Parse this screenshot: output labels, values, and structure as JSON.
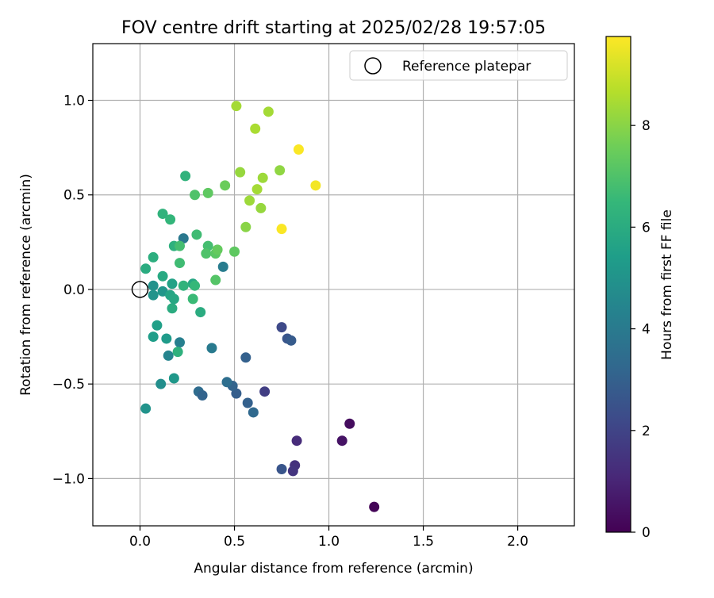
{
  "chart_data": {
    "type": "scatter",
    "title": "FOV centre drift starting at 2025/02/28 19:57:05",
    "xlabel": "Angular distance from reference (arcmin)",
    "ylabel": "Rotation from reference (arcmin)",
    "xlim": [
      -0.25,
      2.3
    ],
    "ylim": [
      -1.25,
      1.3
    ],
    "xticks": [
      0.0,
      0.5,
      1.0,
      1.5,
      2.0
    ],
    "xtick_labels": [
      "0.0",
      "0.5",
      "1.0",
      "1.5",
      "2.0"
    ],
    "yticks": [
      -1.0,
      -0.5,
      0.0,
      0.5,
      1.0
    ],
    "ytick_labels": [
      "−1.0",
      "−0.5",
      "0.0",
      "0.5",
      "1.0"
    ],
    "grid": true,
    "legend": {
      "label": "Reference platepar",
      "position": "top-right"
    },
    "reference_point": {
      "x": 0.0,
      "y": 0.0
    },
    "colorbar": {
      "label": "Hours from first FF file",
      "colormap": "viridis",
      "range": [
        0,
        9.75
      ],
      "ticks": [
        0,
        2,
        4,
        6,
        8
      ],
      "tick_labels": [
        "0",
        "2",
        "4",
        "6",
        "8"
      ]
    },
    "colormap_stops": [
      "#440154",
      "#482878",
      "#3e4989",
      "#31688e",
      "#26828e",
      "#1f9e89",
      "#35b779",
      "#6ece58",
      "#b5de2b",
      "#fde725"
    ],
    "points": [
      {
        "x": 1.24,
        "y": -1.15,
        "t": 0.1
      },
      {
        "x": 1.11,
        "y": -0.71,
        "t": 0.3
      },
      {
        "x": 1.07,
        "y": -0.8,
        "t": 0.5
      },
      {
        "x": 0.83,
        "y": -0.8,
        "t": 1.2
      },
      {
        "x": 0.82,
        "y": -0.93,
        "t": 1.4
      },
      {
        "x": 0.81,
        "y": -0.96,
        "t": 1.5
      },
      {
        "x": 0.66,
        "y": -0.54,
        "t": 1.8
      },
      {
        "x": 0.75,
        "y": -0.95,
        "t": 2.6
      },
      {
        "x": 0.75,
        "y": -0.2,
        "t": 2.2
      },
      {
        "x": 0.78,
        "y": -0.26,
        "t": 2.6
      },
      {
        "x": 0.8,
        "y": -0.27,
        "t": 2.8
      },
      {
        "x": 0.56,
        "y": -0.36,
        "t": 3.0
      },
      {
        "x": 0.51,
        "y": -0.55,
        "t": 2.9
      },
      {
        "x": 0.49,
        "y": -0.51,
        "t": 3.1
      },
      {
        "x": 0.57,
        "y": -0.6,
        "t": 3.0
      },
      {
        "x": 0.6,
        "y": -0.65,
        "t": 3.3
      },
      {
        "x": 0.46,
        "y": -0.49,
        "t": 3.5
      },
      {
        "x": 0.31,
        "y": -0.54,
        "t": 3.4
      },
      {
        "x": 0.33,
        "y": -0.56,
        "t": 3.1
      },
      {
        "x": 0.38,
        "y": -0.31,
        "t": 4.0
      },
      {
        "x": 0.44,
        "y": 0.12,
        "t": 4.1
      },
      {
        "x": 0.23,
        "y": 0.27,
        "t": 3.9
      },
      {
        "x": 0.21,
        "y": -0.28,
        "t": 4.2
      },
      {
        "x": 0.15,
        "y": -0.35,
        "t": 4.4
      },
      {
        "x": 0.11,
        "y": -0.5,
        "t": 4.8
      },
      {
        "x": 0.03,
        "y": -0.63,
        "t": 5.0
      },
      {
        "x": 0.18,
        "y": -0.47,
        "t": 5.2
      },
      {
        "x": 0.14,
        "y": -0.26,
        "t": 5.3
      },
      {
        "x": 0.07,
        "y": -0.25,
        "t": 5.4
      },
      {
        "x": 0.09,
        "y": -0.19,
        "t": 5.5
      },
      {
        "x": 0.2,
        "y": -0.33,
        "t": 6.2
      },
      {
        "x": 0.17,
        "y": -0.1,
        "t": 6.0
      },
      {
        "x": 0.32,
        "y": -0.12,
        "t": 6.0
      },
      {
        "x": 0.07,
        "y": 0.02,
        "t": 4.9
      },
      {
        "x": 0.07,
        "y": -0.03,
        "t": 5.0
      },
      {
        "x": 0.12,
        "y": -0.01,
        "t": 5.1
      },
      {
        "x": 0.16,
        "y": -0.03,
        "t": 5.7
      },
      {
        "x": 0.18,
        "y": -0.05,
        "t": 5.8
      },
      {
        "x": 0.17,
        "y": 0.03,
        "t": 5.6
      },
      {
        "x": 0.12,
        "y": 0.07,
        "t": 5.9
      },
      {
        "x": 0.28,
        "y": 0.03,
        "t": 5.8
      },
      {
        "x": 0.03,
        "y": 0.11,
        "t": 6.0
      },
      {
        "x": 0.07,
        "y": 0.17,
        "t": 6.1
      },
      {
        "x": 0.18,
        "y": 0.23,
        "t": 6.2
      },
      {
        "x": 0.23,
        "y": 0.02,
        "t": 6.3
      },
      {
        "x": 0.29,
        "y": 0.02,
        "t": 6.5
      },
      {
        "x": 0.28,
        "y": -0.05,
        "t": 6.6
      },
      {
        "x": 0.21,
        "y": 0.14,
        "t": 6.7
      },
      {
        "x": 0.21,
        "y": 0.23,
        "t": 6.8
      },
      {
        "x": 0.12,
        "y": 0.4,
        "t": 6.3
      },
      {
        "x": 0.16,
        "y": 0.37,
        "t": 6.4
      },
      {
        "x": 0.24,
        "y": 0.6,
        "t": 6.3
      },
      {
        "x": 0.3,
        "y": 0.29,
        "t": 6.7
      },
      {
        "x": 0.36,
        "y": 0.23,
        "t": 6.8
      },
      {
        "x": 0.35,
        "y": 0.19,
        "t": 7.0
      },
      {
        "x": 0.4,
        "y": 0.19,
        "t": 7.2
      },
      {
        "x": 0.41,
        "y": 0.21,
        "t": 7.4
      },
      {
        "x": 0.4,
        "y": 0.05,
        "t": 7.1
      },
      {
        "x": 0.29,
        "y": 0.5,
        "t": 7.0
      },
      {
        "x": 0.36,
        "y": 0.51,
        "t": 7.3
      },
      {
        "x": 0.45,
        "y": 0.55,
        "t": 7.5
      },
      {
        "x": 0.5,
        "y": 0.2,
        "t": 7.3
      },
      {
        "x": 0.53,
        "y": 0.62,
        "t": 8.2
      },
      {
        "x": 0.58,
        "y": 0.47,
        "t": 8.3
      },
      {
        "x": 0.62,
        "y": 0.53,
        "t": 8.4
      },
      {
        "x": 0.65,
        "y": 0.59,
        "t": 8.3
      },
      {
        "x": 0.64,
        "y": 0.43,
        "t": 8.2
      },
      {
        "x": 0.56,
        "y": 0.33,
        "t": 8.0
      },
      {
        "x": 0.74,
        "y": 0.63,
        "t": 8.1
      },
      {
        "x": 0.51,
        "y": 0.97,
        "t": 8.4
      },
      {
        "x": 0.61,
        "y": 0.85,
        "t": 8.5
      },
      {
        "x": 0.68,
        "y": 0.94,
        "t": 8.4
      },
      {
        "x": 0.84,
        "y": 0.74,
        "t": 9.7
      },
      {
        "x": 0.93,
        "y": 0.55,
        "t": 9.6
      },
      {
        "x": 0.75,
        "y": 0.32,
        "t": 9.7
      }
    ]
  }
}
